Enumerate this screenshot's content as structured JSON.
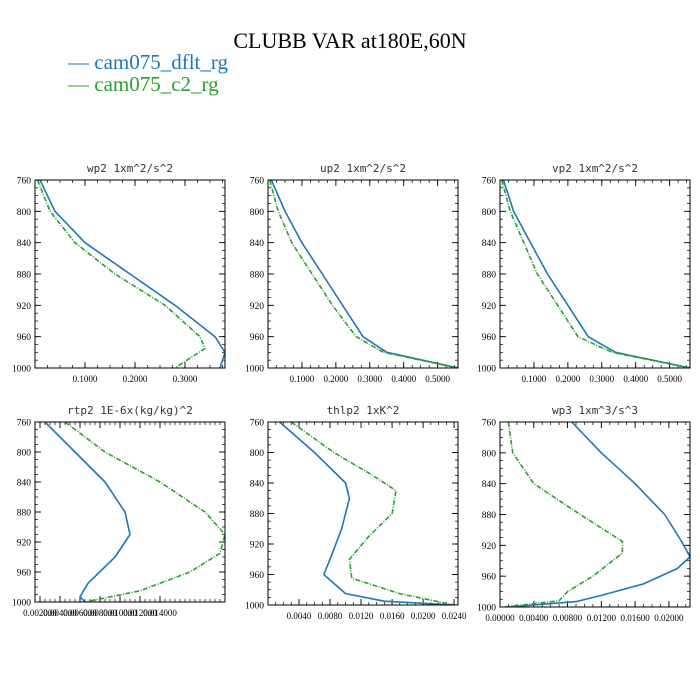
{
  "figure_title": "CLUBB VAR at180E,60N",
  "legend": [
    {
      "label": "— cam075_dflt_rg",
      "color": "#1f77b4"
    },
    {
      "label": "— cam075_c2_rg",
      "color": "#2ca02c"
    }
  ],
  "chart_data": [
    {
      "type": "line",
      "title": "wp2  1xm^2/s^2",
      "ylim": [
        760,
        1000
      ],
      "yticks": [
        760,
        800,
        840,
        880,
        920,
        960,
        1000
      ],
      "y_reversed": true,
      "xlim": [
        0.0,
        0.38
      ],
      "xticks": [
        0.1,
        0.2,
        0.3
      ],
      "xtick_labels": [
        "0.1000",
        "0.2000",
        "0.3000"
      ],
      "series": [
        {
          "name": "cam075_dflt_rg",
          "points": [
            [
              0.01,
              760
            ],
            [
              0.04,
              800
            ],
            [
              0.1,
              840
            ],
            [
              0.19,
              880
            ],
            [
              0.28,
              920
            ],
            [
              0.36,
              960
            ],
            [
              0.38,
              980
            ],
            [
              0.37,
              1000
            ]
          ]
        },
        {
          "name": "cam075_c2_rg",
          "points": [
            [
              0.005,
              760
            ],
            [
              0.03,
              800
            ],
            [
              0.08,
              840
            ],
            [
              0.16,
              880
            ],
            [
              0.26,
              920
            ],
            [
              0.33,
              960
            ],
            [
              0.34,
              975
            ],
            [
              0.28,
              1000
            ]
          ]
        }
      ]
    },
    {
      "type": "line",
      "title": "up2  1xm^2/s^2",
      "ylim": [
        760,
        1000
      ],
      "yticks": [
        760,
        800,
        840,
        880,
        920,
        960,
        1000
      ],
      "y_reversed": true,
      "xlim": [
        0.0,
        0.56
      ],
      "xticks": [
        0.1,
        0.2,
        0.3,
        0.4,
        0.5
      ],
      "xtick_labels": [
        "0.1000",
        "0.2000",
        "0.3000",
        "0.4000",
        "0.5000"
      ],
      "series": [
        {
          "name": "cam075_dflt_rg",
          "points": [
            [
              0.01,
              760
            ],
            [
              0.05,
              800
            ],
            [
              0.1,
              840
            ],
            [
              0.16,
              880
            ],
            [
              0.22,
              920
            ],
            [
              0.28,
              960
            ],
            [
              0.35,
              980
            ],
            [
              0.56,
              1000
            ]
          ]
        },
        {
          "name": "cam075_c2_rg",
          "points": [
            [
              0.005,
              760
            ],
            [
              0.03,
              800
            ],
            [
              0.07,
              840
            ],
            [
              0.13,
              880
            ],
            [
              0.19,
              920
            ],
            [
              0.26,
              960
            ],
            [
              0.34,
              980
            ],
            [
              0.56,
              1000
            ]
          ]
        }
      ]
    },
    {
      "type": "line",
      "title": "vp2  1xm^2/s^2",
      "ylim": [
        760,
        1000
      ],
      "yticks": [
        760,
        800,
        840,
        880,
        920,
        960,
        1000
      ],
      "y_reversed": true,
      "xlim": [
        0.0,
        0.56
      ],
      "xticks": [
        0.1,
        0.2,
        0.3,
        0.4,
        0.5
      ],
      "xtick_labels": [
        "0.1000",
        "0.2000",
        "0.3000",
        "0.4000",
        "0.5000"
      ],
      "series": [
        {
          "name": "cam075_dflt_rg",
          "points": [
            [
              0.01,
              760
            ],
            [
              0.04,
              800
            ],
            [
              0.09,
              840
            ],
            [
              0.14,
              880
            ],
            [
              0.2,
              920
            ],
            [
              0.26,
              960
            ],
            [
              0.34,
              980
            ],
            [
              0.56,
              1000
            ]
          ]
        },
        {
          "name": "cam075_c2_rg",
          "points": [
            [
              0.005,
              760
            ],
            [
              0.03,
              800
            ],
            [
              0.07,
              840
            ],
            [
              0.11,
              880
            ],
            [
              0.17,
              920
            ],
            [
              0.23,
              960
            ],
            [
              0.33,
              980
            ],
            [
              0.56,
              1000
            ]
          ]
        }
      ]
    },
    {
      "type": "line",
      "title": "rtp2  1E-6x(kg/kg)^2",
      "ylim": [
        760,
        1000
      ],
      "yticks": [
        760,
        800,
        840,
        880,
        920,
        960,
        1000
      ],
      "y_reversed": true,
      "xlim": [
        0.0015,
        0.0205
      ],
      "xticks": [
        0.002,
        0.004,
        0.006,
        0.008,
        0.01,
        0.012,
        0.014
      ],
      "xtick_labels": [
        "0.002000",
        "0.004000",
        "0.006000",
        "0.008000",
        "0.010000",
        "0.012000",
        "0.014000"
      ],
      "series": [
        {
          "name": "cam075_dflt_rg",
          "points": [
            [
              0.0025,
              760
            ],
            [
              0.0055,
              800
            ],
            [
              0.0085,
              840
            ],
            [
              0.0105,
              880
            ],
            [
              0.011,
              910
            ],
            [
              0.0095,
              940
            ],
            [
              0.0068,
              975
            ],
            [
              0.006,
              993
            ],
            [
              0.0065,
              1000
            ]
          ]
        },
        {
          "name": "cam075_c2_rg",
          "points": [
            [
              0.0045,
              760
            ],
            [
              0.0085,
              800
            ],
            [
              0.014,
              840
            ],
            [
              0.0185,
              880
            ],
            [
              0.0205,
              910
            ],
            [
              0.02,
              935
            ],
            [
              0.017,
              960
            ],
            [
              0.012,
              985
            ],
            [
              0.0065,
              1000
            ]
          ]
        }
      ]
    },
    {
      "type": "line",
      "title": "thlp2  1xK^2",
      "ylim": [
        760,
        1000
      ],
      "yticks": [
        760,
        800,
        840,
        880,
        920,
        960,
        1000
      ],
      "y_reversed": true,
      "xlim": [
        0.0,
        0.0245
      ],
      "xticks": [
        0.004,
        0.008,
        0.012,
        0.016,
        0.02,
        0.024
      ],
      "xtick_labels": [
        "0.0040",
        "0.0080",
        "0.0120",
        "0.0160",
        "0.0200",
        "0.0240"
      ],
      "series": [
        {
          "name": "cam075_dflt_rg",
          "points": [
            [
              0.0015,
              760
            ],
            [
              0.006,
              800
            ],
            [
              0.01,
              840
            ],
            [
              0.0105,
              860
            ],
            [
              0.0095,
              900
            ],
            [
              0.008,
              940
            ],
            [
              0.0072,
              960
            ],
            [
              0.01,
              985
            ],
            [
              0.015,
              995
            ],
            [
              0.024,
              1000
            ]
          ]
        },
        {
          "name": "cam075_c2_rg",
          "points": [
            [
              0.003,
              760
            ],
            [
              0.0085,
              800
            ],
            [
              0.0135,
              830
            ],
            [
              0.0165,
              850
            ],
            [
              0.016,
              880
            ],
            [
              0.013,
              910
            ],
            [
              0.0105,
              940
            ],
            [
              0.0108,
              965
            ],
            [
              0.017,
              985
            ],
            [
              0.024,
              1000
            ]
          ]
        }
      ]
    },
    {
      "type": "line",
      "title": "wp3  1xm^3/s^3",
      "ylim": [
        760,
        1000
      ],
      "yticks": [
        760,
        800,
        840,
        880,
        920,
        960,
        1000
      ],
      "y_reversed": true,
      "xlim": [
        0.0,
        0.0225
      ],
      "xticks": [
        0.0,
        0.004,
        0.008,
        0.012,
        0.016,
        0.02
      ],
      "xtick_labels": [
        "0.00000",
        "0.00400",
        "0.00800",
        "0.01200",
        "0.01600",
        "0.02000"
      ],
      "series": [
        {
          "name": "cam075_dflt_rg",
          "points": [
            [
              0.0085,
              760
            ],
            [
              0.012,
              800
            ],
            [
              0.016,
              840
            ],
            [
              0.0195,
              880
            ],
            [
              0.0215,
              915
            ],
            [
              0.0225,
              935
            ],
            [
              0.021,
              950
            ],
            [
              0.017,
              970
            ],
            [
              0.012,
              985
            ],
            [
              0.009,
              993
            ],
            [
              0.001,
              1000
            ]
          ]
        },
        {
          "name": "cam075_c2_rg",
          "points": [
            [
              0.001,
              760
            ],
            [
              0.0015,
              800
            ],
            [
              0.004,
              840
            ],
            [
              0.0095,
              880
            ],
            [
              0.0145,
              915
            ],
            [
              0.0145,
              930
            ],
            [
              0.011,
              960
            ],
            [
              0.008,
              980
            ],
            [
              0.007,
              992
            ],
            [
              0.0005,
              1000
            ]
          ]
        }
      ]
    }
  ]
}
